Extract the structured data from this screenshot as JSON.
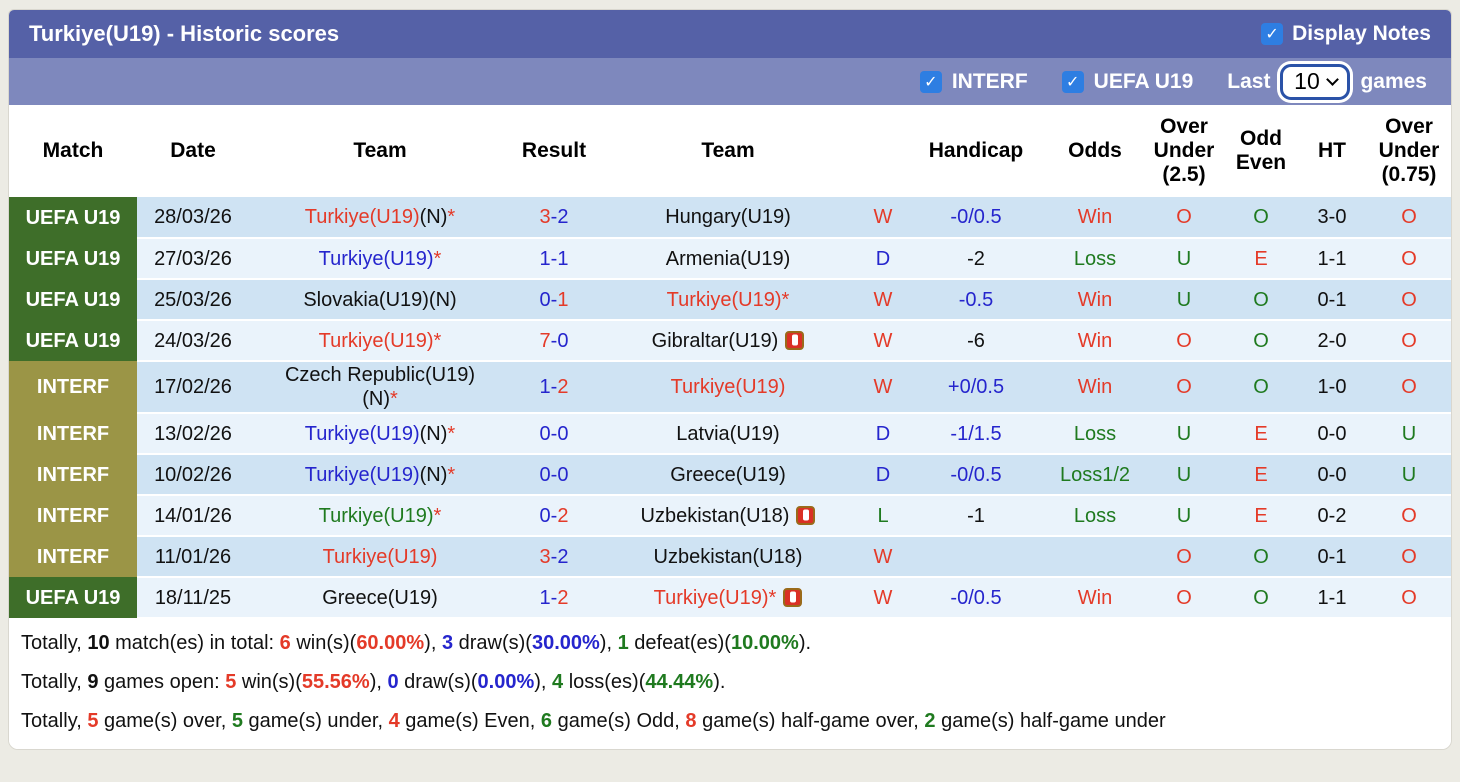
{
  "header": {
    "title": "Turkiye(U19) - Historic scores",
    "display_notes_label": "Display Notes",
    "display_notes_checked": true
  },
  "filters": {
    "interf_label": "INTERF",
    "interf_checked": true,
    "uefa_label": "UEFA U19",
    "uefa_checked": true,
    "last_label": "Last",
    "last_games_value": "10",
    "games_label": "games"
  },
  "table": {
    "columns": [
      "Match",
      "Date",
      "Team",
      "Result",
      "Team",
      "",
      "Handicap",
      "Odds",
      "Over\nUnder\n(2.5)",
      "Odd\nEven",
      "HT",
      "Over\nUnder\n(0.75)"
    ]
  },
  "rows": [
    {
      "comp": "UEFA U19",
      "group": "uefa",
      "date": "28/03/26",
      "home": [
        [
          "Turkiye(U19)",
          "red"
        ],
        [
          "(N)",
          "black"
        ],
        [
          "*",
          "red"
        ]
      ],
      "home_card": false,
      "result": [
        [
          "3",
          "red"
        ],
        [
          "-",
          "blue"
        ],
        [
          "2",
          "blue"
        ]
      ],
      "away": [
        [
          "Hungary(U19)",
          "black"
        ]
      ],
      "away_card": false,
      "wdl": [
        "W",
        "red"
      ],
      "handicap": [
        "-0/0.5",
        "blue"
      ],
      "odds": [
        "Win",
        "red"
      ],
      "ou25": [
        "O",
        "red"
      ],
      "oddeven": [
        "O",
        "green"
      ],
      "ht": "3-0",
      "ou075": [
        "O",
        "red"
      ]
    },
    {
      "comp": "UEFA U19",
      "group": "uefa",
      "date": "27/03/26",
      "home": [
        [
          "Turkiye(U19)",
          "blue"
        ],
        [
          "*",
          "red"
        ]
      ],
      "home_card": false,
      "result": [
        [
          "1",
          "blue"
        ],
        [
          "-",
          "blue"
        ],
        [
          "1",
          "blue"
        ]
      ],
      "away": [
        [
          "Armenia(U19)",
          "black"
        ]
      ],
      "away_card": false,
      "wdl": [
        "D",
        "blue"
      ],
      "handicap": [
        "-2",
        "black"
      ],
      "odds": [
        "Loss",
        "green"
      ],
      "ou25": [
        "U",
        "green"
      ],
      "oddeven": [
        "E",
        "red"
      ],
      "ht": "1-1",
      "ou075": [
        "O",
        "red"
      ]
    },
    {
      "comp": "UEFA U19",
      "group": "uefa",
      "date": "25/03/26",
      "home": [
        [
          "Slovakia(U19)(N)",
          "black"
        ]
      ],
      "home_card": false,
      "result": [
        [
          "0",
          "blue"
        ],
        [
          "-",
          "blue"
        ],
        [
          "1",
          "red"
        ]
      ],
      "away": [
        [
          "Turkiye(U19)",
          "red"
        ],
        [
          "*",
          "red"
        ]
      ],
      "away_card": false,
      "wdl": [
        "W",
        "red"
      ],
      "handicap": [
        "-0.5",
        "blue"
      ],
      "odds": [
        "Win",
        "red"
      ],
      "ou25": [
        "U",
        "green"
      ],
      "oddeven": [
        "O",
        "green"
      ],
      "ht": "0-1",
      "ou075": [
        "O",
        "red"
      ]
    },
    {
      "comp": "UEFA U19",
      "group": "uefa",
      "date": "24/03/26",
      "home": [
        [
          "Turkiye(U19)",
          "red"
        ],
        [
          "*",
          "red"
        ]
      ],
      "home_card": false,
      "result": [
        [
          "7",
          "red"
        ],
        [
          "-",
          "blue"
        ],
        [
          "0",
          "blue"
        ]
      ],
      "away": [
        [
          "Gibraltar(U19)",
          "black"
        ]
      ],
      "away_card": true,
      "wdl": [
        "W",
        "red"
      ],
      "handicap": [
        "-6",
        "black"
      ],
      "odds": [
        "Win",
        "red"
      ],
      "ou25": [
        "O",
        "red"
      ],
      "oddeven": [
        "O",
        "green"
      ],
      "ht": "2-0",
      "ou075": [
        "O",
        "red"
      ]
    },
    {
      "comp": "INTERF",
      "group": "interf",
      "date": "17/02/26",
      "home": [
        [
          "Czech Republic(U19)",
          "black"
        ],
        [
          "\n",
          "br"
        ],
        [
          "(N)",
          "black"
        ],
        [
          "*",
          "red"
        ]
      ],
      "home_card": false,
      "result": [
        [
          "1",
          "blue"
        ],
        [
          "-",
          "blue"
        ],
        [
          "2",
          "red"
        ]
      ],
      "away": [
        [
          "Turkiye(U19)",
          "red"
        ]
      ],
      "away_card": false,
      "wdl": [
        "W",
        "red"
      ],
      "handicap": [
        "+0/0.5",
        "blue"
      ],
      "odds": [
        "Win",
        "red"
      ],
      "ou25": [
        "O",
        "red"
      ],
      "oddeven": [
        "O",
        "green"
      ],
      "ht": "1-0",
      "ou075": [
        "O",
        "red"
      ]
    },
    {
      "comp": "INTERF",
      "group": "interf",
      "date": "13/02/26",
      "home": [
        [
          "Turkiye(U19)",
          "blue"
        ],
        [
          "(N)",
          "black"
        ],
        [
          "*",
          "red"
        ]
      ],
      "home_card": false,
      "result": [
        [
          "0",
          "blue"
        ],
        [
          "-",
          "blue"
        ],
        [
          "0",
          "blue"
        ]
      ],
      "away": [
        [
          "Latvia(U19)",
          "black"
        ]
      ],
      "away_card": false,
      "wdl": [
        "D",
        "blue"
      ],
      "handicap": [
        "-1/1.5",
        "blue"
      ],
      "odds": [
        "Loss",
        "green"
      ],
      "ou25": [
        "U",
        "green"
      ],
      "oddeven": [
        "E",
        "red"
      ],
      "ht": "0-0",
      "ou075": [
        "U",
        "green"
      ]
    },
    {
      "comp": "INTERF",
      "group": "interf",
      "date": "10/02/26",
      "home": [
        [
          "Turkiye(U19)",
          "blue"
        ],
        [
          "(N)",
          "black"
        ],
        [
          "*",
          "red"
        ]
      ],
      "home_card": false,
      "result": [
        [
          "0",
          "blue"
        ],
        [
          "-",
          "blue"
        ],
        [
          "0",
          "blue"
        ]
      ],
      "away": [
        [
          "Greece(U19)",
          "black"
        ]
      ],
      "away_card": false,
      "wdl": [
        "D",
        "blue"
      ],
      "handicap": [
        "-0/0.5",
        "blue"
      ],
      "odds": [
        "Loss1/2",
        "green"
      ],
      "ou25": [
        "U",
        "green"
      ],
      "oddeven": [
        "E",
        "red"
      ],
      "ht": "0-0",
      "ou075": [
        "U",
        "green"
      ]
    },
    {
      "comp": "INTERF",
      "group": "interf",
      "date": "14/01/26",
      "home": [
        [
          "Turkiye(U19)",
          "green"
        ],
        [
          "*",
          "red"
        ]
      ],
      "home_card": false,
      "result": [
        [
          "0",
          "blue"
        ],
        [
          "-",
          "blue"
        ],
        [
          "2",
          "red"
        ]
      ],
      "away": [
        [
          "Uzbekistan(U18)",
          "black"
        ]
      ],
      "away_card": true,
      "wdl": [
        "L",
        "green"
      ],
      "handicap": [
        "-1",
        "black"
      ],
      "odds": [
        "Loss",
        "green"
      ],
      "ou25": [
        "U",
        "green"
      ],
      "oddeven": [
        "E",
        "red"
      ],
      "ht": "0-2",
      "ou075": [
        "O",
        "red"
      ]
    },
    {
      "comp": "INTERF",
      "group": "interf",
      "date": "11/01/26",
      "home": [
        [
          "Turkiye(U19)",
          "red"
        ]
      ],
      "home_card": false,
      "result": [
        [
          "3",
          "red"
        ],
        [
          "-",
          "blue"
        ],
        [
          "2",
          "blue"
        ]
      ],
      "away": [
        [
          "Uzbekistan(U18)",
          "black"
        ]
      ],
      "away_card": false,
      "wdl": [
        "W",
        "red"
      ],
      "handicap": null,
      "odds": null,
      "ou25": [
        "O",
        "red"
      ],
      "oddeven": [
        "O",
        "green"
      ],
      "ht": "0-1",
      "ou075": [
        "O",
        "red"
      ]
    },
    {
      "comp": "UEFA U19",
      "group": "uefa",
      "date": "18/11/25",
      "home": [
        [
          "Greece(U19)",
          "black"
        ]
      ],
      "home_card": false,
      "result": [
        [
          "1",
          "blue"
        ],
        [
          "-",
          "blue"
        ],
        [
          "2",
          "red"
        ]
      ],
      "away": [
        [
          "Turkiye(U19)",
          "red"
        ],
        [
          "*",
          "red"
        ]
      ],
      "away_card": true,
      "wdl": [
        "W",
        "red"
      ],
      "handicap": [
        "-0/0.5",
        "blue"
      ],
      "odds": [
        "Win",
        "red"
      ],
      "ou25": [
        "O",
        "red"
      ],
      "oddeven": [
        "O",
        "green"
      ],
      "ht": "1-1",
      "ou075": [
        "O",
        "red"
      ]
    }
  ],
  "footer": {
    "lines": [
      [
        [
          "Totally, ",
          null,
          0
        ],
        [
          "10",
          null,
          1
        ],
        [
          " match(es) in total: ",
          null,
          0
        ],
        [
          "6",
          "red",
          1
        ],
        [
          " win(s)(",
          null,
          0
        ],
        [
          "60.00%",
          "red",
          1
        ],
        [
          "), ",
          null,
          0
        ],
        [
          "3",
          "blue",
          1
        ],
        [
          " draw(s)(",
          null,
          0
        ],
        [
          "30.00%",
          "blue",
          1
        ],
        [
          "), ",
          null,
          0
        ],
        [
          "1",
          "green",
          1
        ],
        [
          " defeat(es)(",
          null,
          0
        ],
        [
          "10.00%",
          "green",
          1
        ],
        [
          ").",
          null,
          0
        ]
      ],
      [
        [
          "Totally, ",
          null,
          0
        ],
        [
          "9",
          null,
          1
        ],
        [
          " games open: ",
          null,
          0
        ],
        [
          "5",
          "red",
          1
        ],
        [
          " win(s)(",
          null,
          0
        ],
        [
          "55.56%",
          "red",
          1
        ],
        [
          "), ",
          null,
          0
        ],
        [
          "0",
          "blue",
          1
        ],
        [
          " draw(s)(",
          null,
          0
        ],
        [
          "0.00%",
          "blue",
          1
        ],
        [
          "), ",
          null,
          0
        ],
        [
          "4",
          "green",
          1
        ],
        [
          " loss(es)(",
          null,
          0
        ],
        [
          "44.44%",
          "green",
          1
        ],
        [
          ").",
          null,
          0
        ]
      ],
      [
        [
          "Totally, ",
          null,
          0
        ],
        [
          "5",
          "red",
          1
        ],
        [
          " game(s) over, ",
          null,
          0
        ],
        [
          "5",
          "green",
          1
        ],
        [
          " game(s) under, ",
          null,
          0
        ],
        [
          "4",
          "red",
          1
        ],
        [
          " game(s) Even, ",
          null,
          0
        ],
        [
          "6",
          "green",
          1
        ],
        [
          " game(s) Odd, ",
          null,
          0
        ],
        [
          "8",
          "red",
          1
        ],
        [
          " game(s) half-game over, ",
          null,
          0
        ],
        [
          "2",
          "green",
          1
        ],
        [
          " game(s) half-game under",
          null,
          0
        ]
      ]
    ]
  },
  "colors": {
    "bar_top": "#5561a7",
    "bar_filters": "#7e88bd",
    "checkbox_blue": "#2e7ee2",
    "uefa_badge_green": "#3e6e29",
    "interf_badge_olive": "#9b9546",
    "row_dark_blue": "#cfe3f3",
    "row_light_blue": "#eaf3fb",
    "text_red": "#e43a28",
    "text_blue": "#2525cd",
    "text_green": "#1f7a1f"
  }
}
